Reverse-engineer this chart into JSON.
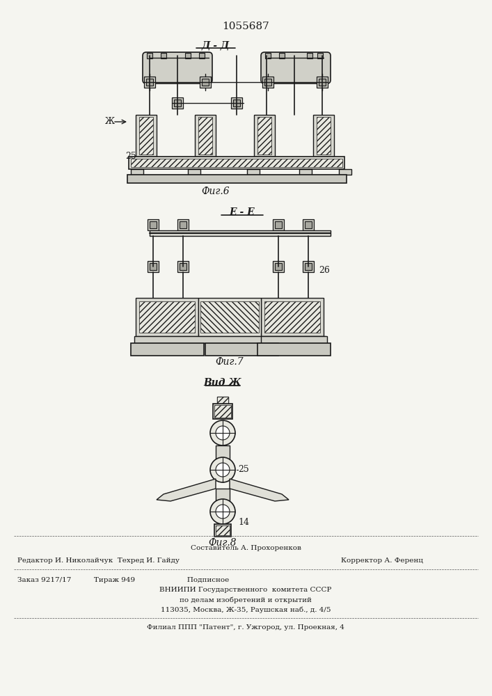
{
  "patent_number": "1055687",
  "fig6_label": "Фиг.6",
  "fig7_label": "Фиг.7",
  "fig8_label": "Фиг.8",
  "section_dd": "Д - Д",
  "section_ee": "Е - Е",
  "view_zh": "Вид Ж",
  "label_25_fig6": "25",
  "label_zh_fig6": "Ж",
  "label_26_fig7": "26",
  "label_25_fig8": "25",
  "label_14_fig8": "14",
  "footer_line1": "Составитель А. Прохоренков",
  "footer_line2": "Редактор И. Николайчук  Техред И. Гайду",
  "footer_line2b": "Корректор А. Ференц",
  "footer_line3": "Заказ 9217/17          Тираж 949                       Подписное",
  "footer_line4": "ВНИИПИ Государственного  комитета СССР",
  "footer_line5": "по делам изобретений и открытий",
  "footer_line6": "113035, Москва, Ж-35, Раушская наб., д. 4/5",
  "footer_line7": "Филиал ППП \"Патент\", г. Ужгород, ул. Проекная, 4",
  "bg_color": "#f5f5f0",
  "line_color": "#1a1a1a",
  "text_color": "#1a1a1a"
}
